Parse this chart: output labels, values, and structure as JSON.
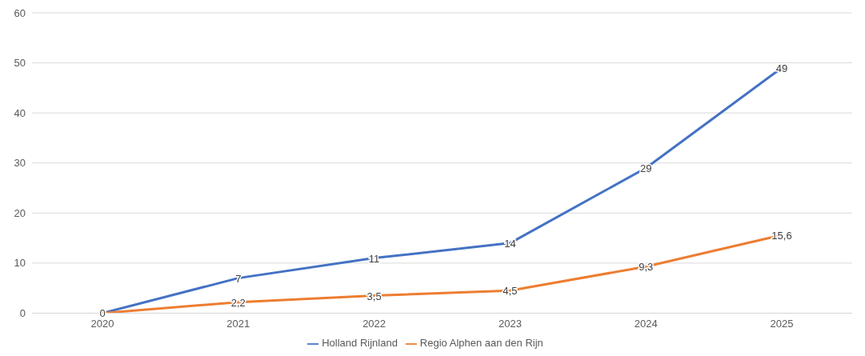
{
  "chart_data": {
    "type": "line",
    "categories": [
      "2020",
      "2021",
      "2022",
      "2023",
      "2024",
      "2025"
    ],
    "series": [
      {
        "name": "Holland Rijnland",
        "color": "#4472c4",
        "values": [
          0,
          7,
          11,
          14,
          29,
          49
        ],
        "value_labels": [
          "0",
          "7",
          "11",
          "14",
          "29",
          "49"
        ]
      },
      {
        "name": "Regio Alphen aan den Rijn",
        "color": "#ed7d31",
        "values": [
          0,
          2.2,
          3.5,
          4.5,
          9.3,
          15.6
        ],
        "value_labels": [
          null,
          "2,2",
          "3,5",
          "4,5",
          "9,3",
          "15,6"
        ]
      }
    ],
    "ylim": [
      0,
      60
    ],
    "yticks": [
      0,
      10,
      20,
      30,
      40,
      50,
      60
    ],
    "grid": "y",
    "legend": "bottom",
    "marker": "none",
    "line_style": "solid"
  }
}
